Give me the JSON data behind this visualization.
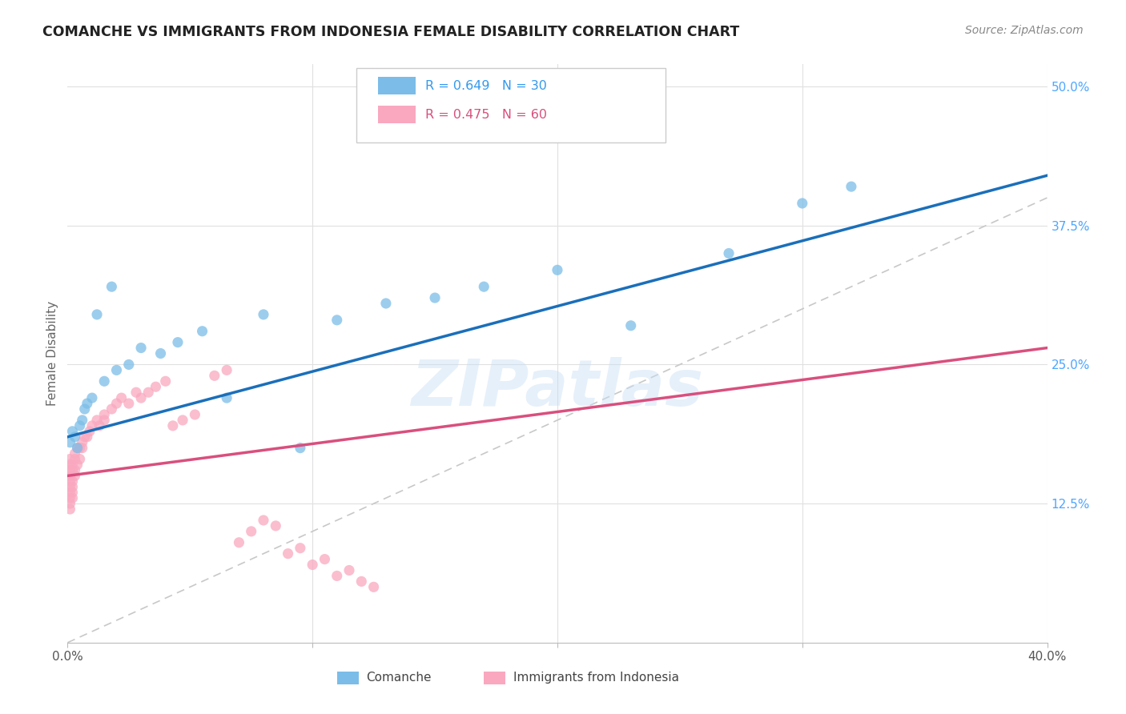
{
  "title": "COMANCHE VS IMMIGRANTS FROM INDONESIA FEMALE DISABILITY CORRELATION CHART",
  "source": "Source: ZipAtlas.com",
  "ylabel": "Female Disability",
  "watermark": "ZIPatlas",
  "xlim": [
    0.0,
    0.4
  ],
  "ylim": [
    0.0,
    0.52
  ],
  "ytick_positions": [
    0.125,
    0.25,
    0.375,
    0.5
  ],
  "ytick_labels": [
    "12.5%",
    "25.0%",
    "37.5%",
    "50.0%"
  ],
  "comanche_R": 0.649,
  "comanche_N": 30,
  "indonesia_R": 0.475,
  "indonesia_N": 60,
  "comanche_color": "#7bbde8",
  "indonesia_color": "#f9a8c0",
  "trendline_comanche_color": "#1a6fba",
  "trendline_indonesia_color": "#d94f7e",
  "diagonal_color": "#c8c8c8",
  "background_color": "#ffffff",
  "grid_color": "#e0e0e0",
  "comanche_x": [
    0.001,
    0.002,
    0.003,
    0.004,
    0.005,
    0.006,
    0.007,
    0.008,
    0.01,
    0.012,
    0.015,
    0.018,
    0.02,
    0.025,
    0.03,
    0.038,
    0.045,
    0.055,
    0.065,
    0.08,
    0.095,
    0.11,
    0.13,
    0.15,
    0.17,
    0.2,
    0.23,
    0.27,
    0.3,
    0.32
  ],
  "comanche_y": [
    0.18,
    0.19,
    0.185,
    0.175,
    0.195,
    0.2,
    0.21,
    0.215,
    0.22,
    0.295,
    0.235,
    0.32,
    0.245,
    0.25,
    0.265,
    0.26,
    0.27,
    0.28,
    0.22,
    0.295,
    0.175,
    0.29,
    0.305,
    0.31,
    0.32,
    0.335,
    0.285,
    0.35,
    0.395,
    0.41
  ],
  "indonesia_x": [
    0.001,
    0.001,
    0.001,
    0.001,
    0.001,
    0.001,
    0.001,
    0.001,
    0.001,
    0.001,
    0.002,
    0.002,
    0.002,
    0.002,
    0.002,
    0.002,
    0.003,
    0.003,
    0.003,
    0.003,
    0.004,
    0.004,
    0.005,
    0.005,
    0.006,
    0.006,
    0.007,
    0.008,
    0.009,
    0.01,
    0.012,
    0.013,
    0.015,
    0.015,
    0.018,
    0.02,
    0.022,
    0.025,
    0.028,
    0.03,
    0.033,
    0.036,
    0.04,
    0.043,
    0.047,
    0.052,
    0.06,
    0.065,
    0.07,
    0.075,
    0.08,
    0.085,
    0.09,
    0.095,
    0.1,
    0.105,
    0.11,
    0.115,
    0.12,
    0.125
  ],
  "indonesia_y": [
    0.155,
    0.16,
    0.15,
    0.145,
    0.13,
    0.165,
    0.14,
    0.135,
    0.125,
    0.12,
    0.16,
    0.155,
    0.145,
    0.14,
    0.13,
    0.135,
    0.17,
    0.165,
    0.155,
    0.15,
    0.175,
    0.16,
    0.175,
    0.165,
    0.18,
    0.175,
    0.185,
    0.185,
    0.19,
    0.195,
    0.2,
    0.195,
    0.205,
    0.2,
    0.21,
    0.215,
    0.22,
    0.215,
    0.225,
    0.22,
    0.225,
    0.23,
    0.235,
    0.195,
    0.2,
    0.205,
    0.24,
    0.245,
    0.09,
    0.1,
    0.11,
    0.105,
    0.08,
    0.085,
    0.07,
    0.075,
    0.06,
    0.065,
    0.055,
    0.05
  ],
  "trendline_com_x0": 0.0,
  "trendline_com_y0": 0.185,
  "trendline_com_x1": 0.4,
  "trendline_com_y1": 0.42,
  "trendline_ind_x0": 0.0,
  "trendline_ind_y0": 0.15,
  "trendline_ind_x1": 0.4,
  "trendline_ind_y1": 0.265
}
